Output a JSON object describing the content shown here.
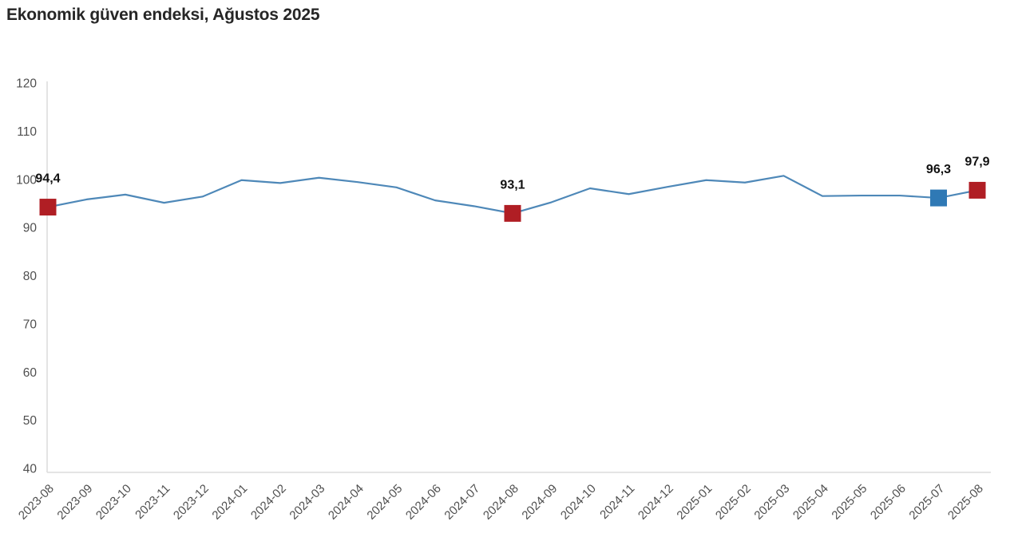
{
  "page": {
    "background": "#ffffff"
  },
  "chart_data": {
    "type": "line",
    "title": "Ekonomik güven endeksi, Ağustos 2025",
    "xlabel": "",
    "ylabel": "",
    "ylim": [
      40,
      120
    ],
    "ytick_step": 10,
    "grid": false,
    "legend_position": "none",
    "categories": [
      "2023-08",
      "2023-09",
      "2023-10",
      "2023-11",
      "2023-12",
      "2024-01",
      "2024-02",
      "2024-03",
      "2024-04",
      "2024-05",
      "2024-06",
      "2024-07",
      "2024-08",
      "2024-09",
      "2024-10",
      "2024-11",
      "2024-12",
      "2025-01",
      "2025-02",
      "2025-03",
      "2025-04",
      "2025-05",
      "2025-06",
      "2025-07",
      "2025-08"
    ],
    "values": [
      94.4,
      96.0,
      97.0,
      95.3,
      96.6,
      100.0,
      99.4,
      100.5,
      99.6,
      98.5,
      95.8,
      94.6,
      93.1,
      95.4,
      98.3,
      97.1,
      98.6,
      100.0,
      99.5,
      100.9,
      96.7,
      96.8,
      96.8,
      96.3,
      97.9
    ],
    "colors": {
      "line": "#4e88b8",
      "marker_red": "#b01e24",
      "marker_blue": "#2f79b5",
      "axis": "#dcdcdc",
      "tick_text": "#4f4f4f",
      "title_text": "#262626",
      "label_text": "#111111"
    },
    "annotations": [
      {
        "category": "2023-08",
        "index": 0,
        "label": "94,4",
        "value": 94.4,
        "color_key": "marker_red"
      },
      {
        "category": "2024-08",
        "index": 12,
        "label": "93,1",
        "value": 93.1,
        "color_key": "marker_red"
      },
      {
        "category": "2025-07",
        "index": 23,
        "label": "96,3",
        "value": 96.3,
        "color_key": "marker_blue"
      },
      {
        "category": "2025-08",
        "index": 24,
        "label": "97,9",
        "value": 97.9,
        "color_key": "marker_red"
      }
    ]
  }
}
